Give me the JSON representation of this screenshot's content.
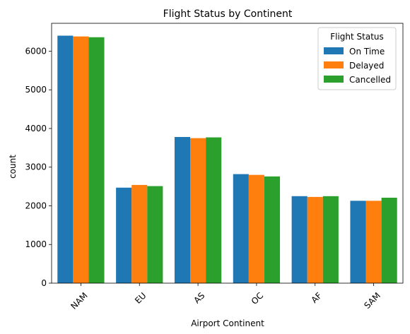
{
  "chart_data": {
    "type": "bar",
    "title": "Flight Status by Continent",
    "xlabel": "Airport Continent",
    "ylabel": "count",
    "categories": [
      "NAM",
      "EU",
      "AS",
      "OC",
      "AF",
      "SAM"
    ],
    "series": [
      {
        "name": "On Time",
        "color": "#1f77b4",
        "values": [
          6400,
          2470,
          3780,
          2820,
          2250,
          2130
        ]
      },
      {
        "name": "Delayed",
        "color": "#ff7f0e",
        "values": [
          6380,
          2540,
          3750,
          2800,
          2230,
          2130
        ]
      },
      {
        "name": "Cancelled",
        "color": "#2ca02c",
        "values": [
          6360,
          2510,
          3770,
          2760,
          2250,
          2210
        ]
      }
    ],
    "ylim": [
      0,
      6720
    ],
    "yticks": [
      0,
      1000,
      2000,
      3000,
      4000,
      5000,
      6000
    ],
    "legend": {
      "title": "Flight Status",
      "placement": "top-right"
    },
    "grid": false,
    "xtick_rotation": 45
  }
}
